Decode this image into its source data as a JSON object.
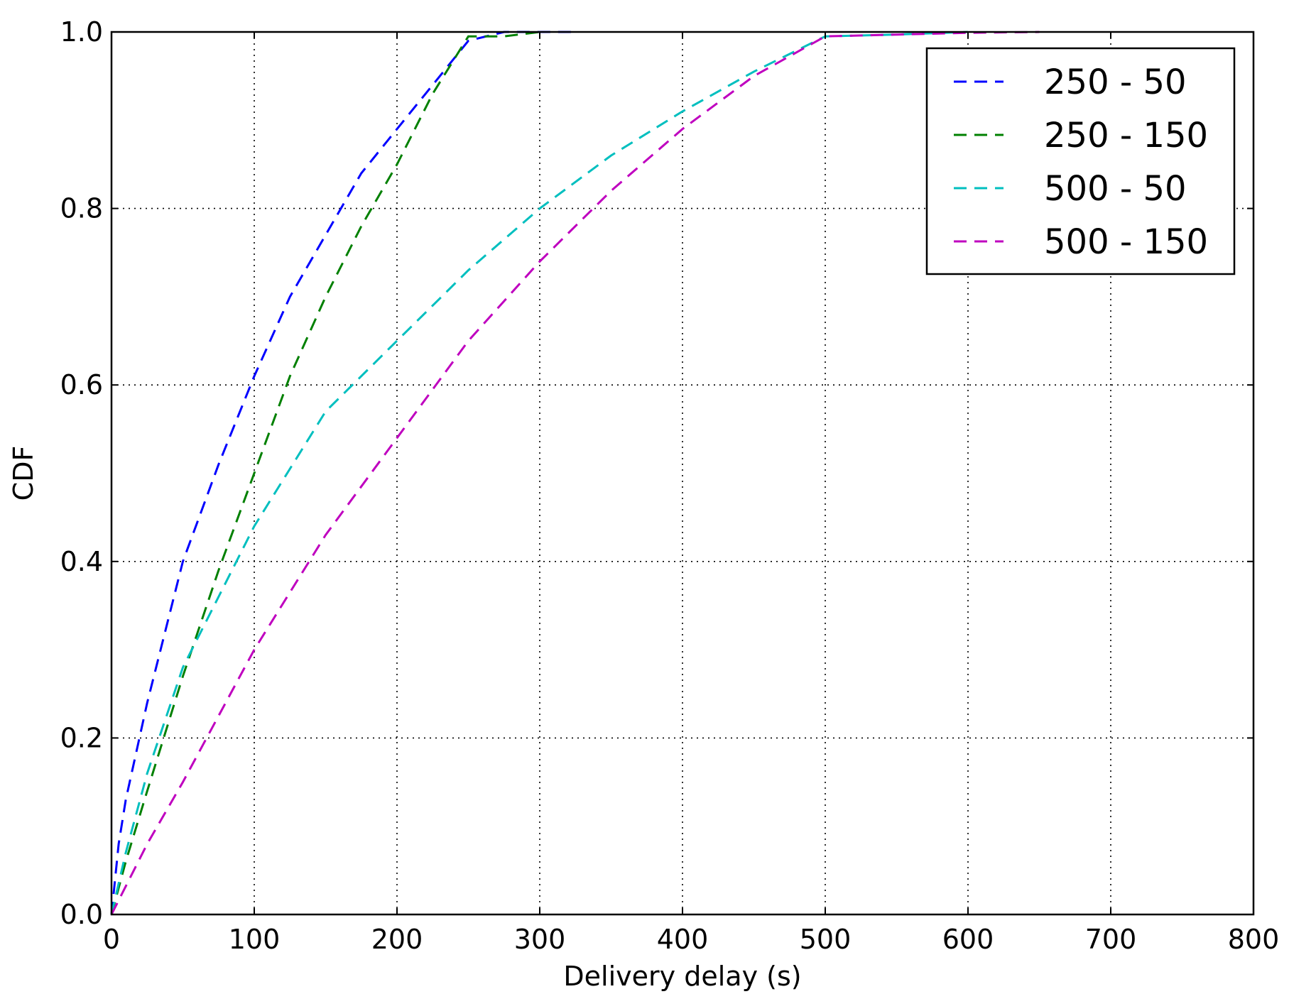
{
  "chart_data": {
    "type": "line",
    "xlabel": "Delivery delay (s)",
    "ylabel": "CDF",
    "xlim": [
      0,
      800
    ],
    "ylim": [
      0,
      1.0
    ],
    "x_ticks": [
      0,
      100,
      200,
      300,
      400,
      500,
      600,
      700,
      800
    ],
    "x_tick_labels": [
      "0",
      "100",
      "200",
      "300",
      "400",
      "500",
      "600",
      "700",
      "800"
    ],
    "y_ticks": [
      0,
      0.2,
      0.4,
      0.6,
      0.8,
      1.0
    ],
    "y_tick_labels": [
      "0.0",
      "0.2",
      "0.4",
      "0.6",
      "0.8",
      "1.0"
    ],
    "grid": true,
    "legend_position": "top-right",
    "series": [
      {
        "name": "250 - 50",
        "color": "#0000ff",
        "x": [
          0,
          5,
          10,
          25,
          50,
          75,
          100,
          125,
          150,
          175,
          200,
          225,
          250,
          275,
          300,
          325
        ],
        "y": [
          0,
          0.08,
          0.13,
          0.24,
          0.4,
          0.51,
          0.61,
          0.7,
          0.77,
          0.84,
          0.89,
          0.94,
          0.99,
          1.0,
          1.0,
          1.0
        ]
      },
      {
        "name": "250 - 150",
        "color": "#008000",
        "x": [
          0,
          10,
          25,
          50,
          75,
          100,
          125,
          150,
          175,
          200,
          225,
          250,
          275,
          300
        ],
        "y": [
          0,
          0.06,
          0.14,
          0.27,
          0.39,
          0.5,
          0.61,
          0.7,
          0.78,
          0.85,
          0.93,
          0.995,
          0.995,
          1.0
        ]
      },
      {
        "name": "500 - 50",
        "color": "#00bfbf",
        "x": [
          0,
          10,
          25,
          50,
          75,
          100,
          150,
          200,
          250,
          300,
          350,
          400,
          450,
          500,
          550,
          600
        ],
        "y": [
          0,
          0.07,
          0.16,
          0.28,
          0.36,
          0.44,
          0.57,
          0.65,
          0.73,
          0.8,
          0.86,
          0.91,
          0.955,
          0.995,
          0.997,
          1.0
        ]
      },
      {
        "name": "500 - 150",
        "color": "#bf00bf",
        "x": [
          0,
          25,
          50,
          100,
          150,
          200,
          250,
          300,
          350,
          400,
          450,
          500,
          550,
          600,
          650
        ],
        "y": [
          0,
          0.08,
          0.15,
          0.3,
          0.43,
          0.54,
          0.65,
          0.74,
          0.82,
          0.89,
          0.95,
          0.995,
          0.997,
          0.999,
          1.0
        ]
      }
    ]
  }
}
